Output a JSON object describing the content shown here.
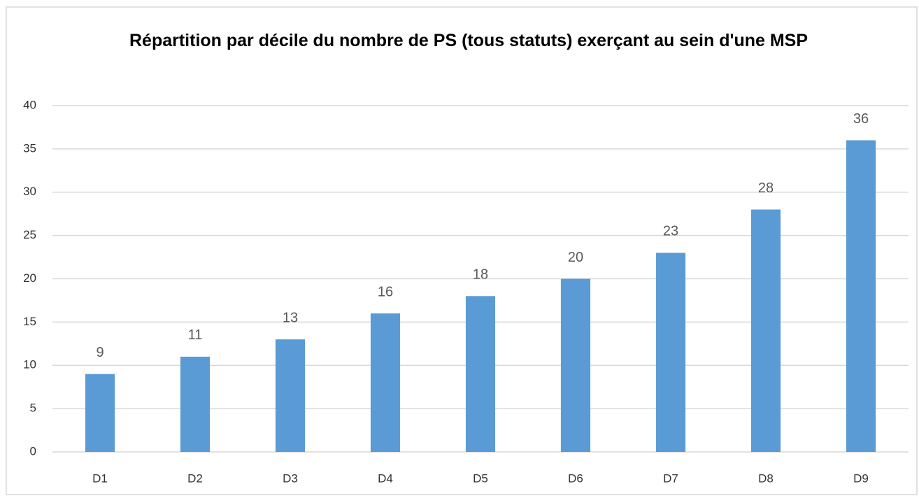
{
  "chart_data": {
    "type": "bar",
    "title": "Répartition par décile du nombre de PS (tous statuts) exerçant au sein d'une MSP",
    "categories": [
      "D1",
      "D2",
      "D3",
      "D4",
      "D5",
      "D6",
      "D7",
      "D8",
      "D9"
    ],
    "values": [
      9,
      11,
      13,
      16,
      18,
      20,
      23,
      28,
      36
    ],
    "color": "#5b9bd5",
    "ylim": [
      0,
      40
    ],
    "yticks": [
      0,
      5,
      10,
      15,
      20,
      25,
      30,
      35,
      40
    ],
    "grid": true
  }
}
